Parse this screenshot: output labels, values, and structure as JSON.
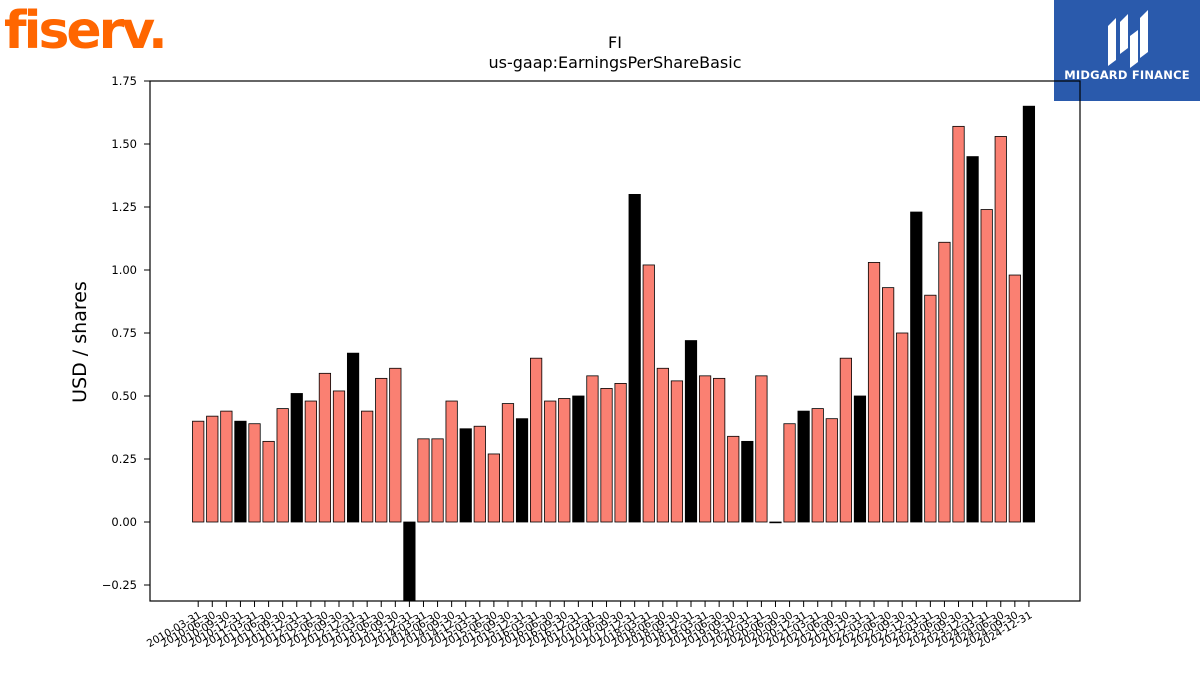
{
  "brand_left": {
    "logo_text": "fiserv.",
    "color": "#ff6600"
  },
  "brand_right": {
    "name": "MIDGARD FINANCE",
    "background": "#2a5aac"
  },
  "chart_data": {
    "type": "bar",
    "title": "FI",
    "subtitle": "us-gaap:EarningsPerShareBasic",
    "ylabel": "USD / shares",
    "xlabel": "",
    "ylim": [
      -0.31,
      1.75
    ],
    "yticks": [
      -0.25,
      0.0,
      0.25,
      0.5,
      0.75,
      1.0,
      1.25,
      1.5,
      1.75
    ],
    "ytick_labels": [
      "−0.25",
      "0.00",
      "0.25",
      "0.50",
      "0.75",
      "1.00",
      "1.25",
      "1.50",
      "1.75"
    ],
    "colors": {
      "quarter": "#fa8072",
      "annual": "#000000"
    },
    "categories": [
      "2010-03-31",
      "2010-06-30",
      "2010-09-30",
      "2010-12-31",
      "2011-03-31",
      "2011-06-30",
      "2011-09-30",
      "2011-12-31",
      "2012-03-31",
      "2012-06-30",
      "2012-09-30",
      "2012-12-31",
      "2013-03-31",
      "2013-06-30",
      "2013-09-30",
      "2013-12-31",
      "2014-03-31",
      "2014-06-30",
      "2014-09-30",
      "2014-12-31",
      "2015-03-31",
      "2015-06-30",
      "2015-09-30",
      "2015-12-31",
      "2016-03-31",
      "2016-06-30",
      "2016-09-30",
      "2016-12-31",
      "2017-03-31",
      "2017-06-30",
      "2017-09-30",
      "2017-12-31",
      "2018-03-31",
      "2018-06-30",
      "2018-09-30",
      "2018-12-31",
      "2019-03-31",
      "2019-06-30",
      "2019-09-30",
      "2019-12-31",
      "2020-03-31",
      "2020-06-30",
      "2020-09-30",
      "2020-12-31",
      "2021-03-31",
      "2021-06-30",
      "2021-09-30",
      "2021-12-31",
      "2022-03-31",
      "2022-06-30",
      "2022-09-30",
      "2022-12-31",
      "2023-03-31",
      "2023-06-30",
      "2023-09-30",
      "2023-12-31",
      "2024-03-31",
      "2024-06-30",
      "2024-09-30",
      "2024-12-31"
    ],
    "series": [
      {
        "values": [
          0.4,
          0.42,
          0.44,
          0.4,
          0.39,
          0.32,
          0.45,
          0.51,
          0.48,
          0.59,
          0.52,
          0.67,
          0.44,
          0.57,
          0.61,
          -0.35,
          0.33,
          0.33,
          0.48,
          0.37,
          0.38,
          0.27,
          0.47,
          0.41,
          0.65,
          0.48,
          0.49,
          0.5,
          0.58,
          0.53,
          0.55,
          1.3,
          1.02,
          0.61,
          0.56,
          0.72,
          0.58,
          0.57,
          0.34,
          0.32,
          0.58,
          0.0,
          0.39,
          0.44,
          0.45,
          0.41,
          0.65,
          0.5,
          1.03,
          0.93,
          0.75,
          1.23,
          0.9,
          1.11,
          1.57,
          1.45,
          1.24,
          1.53,
          0.98,
          1.65
        ],
        "annual_flags": [
          0,
          0,
          0,
          1,
          0,
          0,
          0,
          1,
          0,
          0,
          0,
          1,
          0,
          0,
          0,
          1,
          0,
          0,
          0,
          1,
          0,
          0,
          0,
          1,
          0,
          0,
          0,
          1,
          0,
          0,
          0,
          1,
          0,
          0,
          0,
          1,
          0,
          0,
          0,
          1,
          0,
          0,
          0,
          1,
          0,
          0,
          0,
          1,
          0,
          0,
          0,
          1,
          0,
          0,
          0,
          1,
          0,
          0,
          0,
          1
        ]
      }
    ],
    "grid": false,
    "legend": "none"
  }
}
